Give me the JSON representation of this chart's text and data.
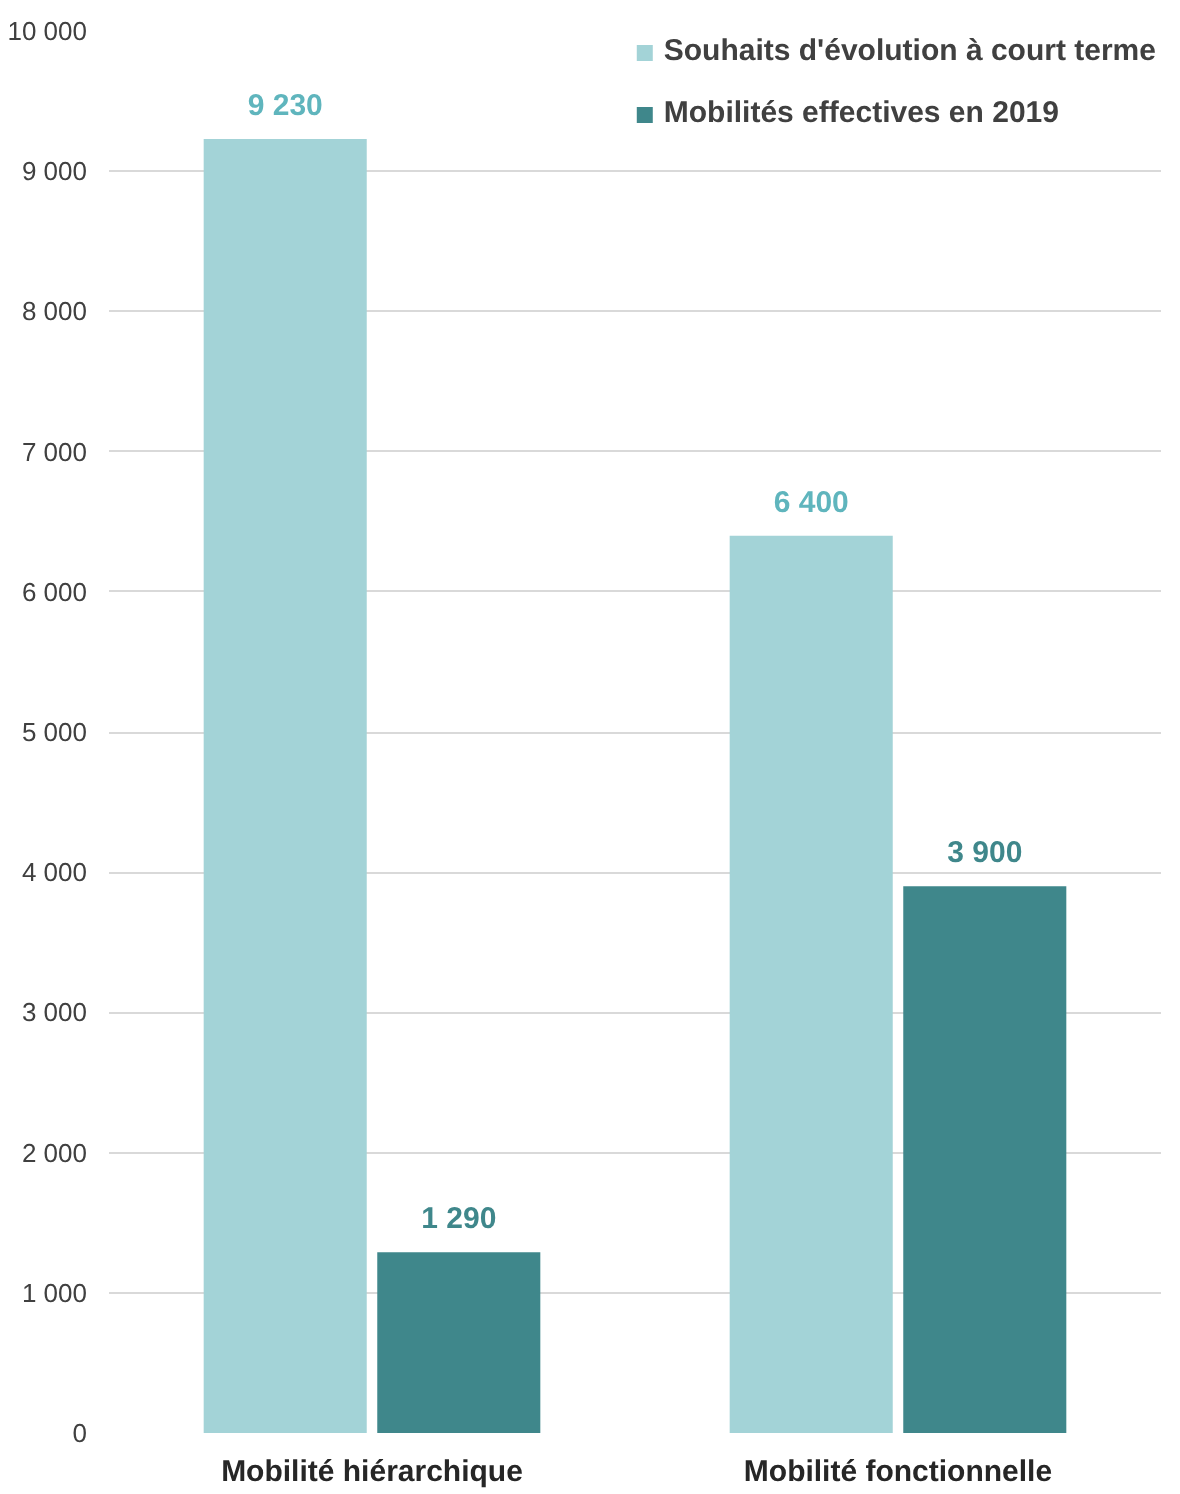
{
  "chart_data": {
    "type": "bar",
    "categories": [
      "Mobilité hiérarchique",
      "Mobilité fonctionnelle"
    ],
    "series": [
      {
        "name": "Souhaits d'évolution à court terme",
        "color": "#a3d3d7",
        "values": [
          9230,
          6400
        ],
        "value_labels": [
          "9 230",
          "6 400"
        ]
      },
      {
        "name": "Mobilités effectives en 2019",
        "color": "#3f878b",
        "values": [
          1290,
          3900
        ],
        "value_labels": [
          "1 290",
          "3 900"
        ]
      }
    ],
    "ylim": [
      0,
      10000
    ],
    "yticks": [
      0,
      {
        "value": 1000,
        "label": "1 000"
      },
      {
        "value": 2000,
        "label": "2 000"
      },
      {
        "value": 3000,
        "label": "3 000"
      },
      {
        "value": 4000,
        "label": "4 000"
      },
      {
        "value": 5000,
        "label": "5 000"
      },
      {
        "value": 6000,
        "label": "6 000"
      },
      {
        "value": 7000,
        "label": "7 000"
      },
      {
        "value": 8000,
        "label": "8 000"
      },
      {
        "value": 9000,
        "label": "9 000"
      },
      {
        "value": 10000,
        "label": "10 000"
      }
    ],
    "grid": "y",
    "legend": "top right"
  }
}
